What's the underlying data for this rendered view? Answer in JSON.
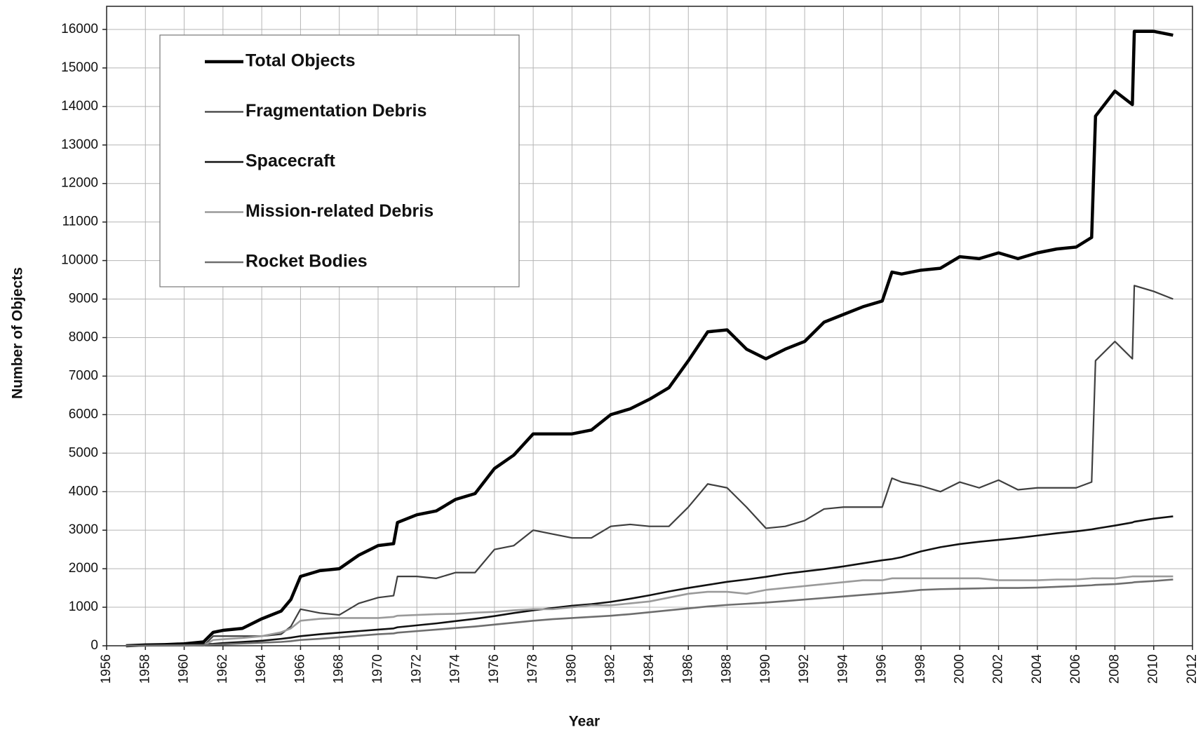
{
  "chart_data": {
    "type": "line",
    "xlabel": "Year",
    "ylabel": "Number of Objects",
    "x": [
      1957,
      1958,
      1959,
      1960,
      1961,
      1961.5,
      1962,
      1963,
      1964,
      1965,
      1965.5,
      1966,
      1967,
      1968,
      1969,
      1970,
      1970.8,
      1971,
      1972,
      1973,
      1974,
      1975,
      1976,
      1977,
      1978,
      1979,
      1980,
      1981,
      1982,
      1983,
      1984,
      1985,
      1986,
      1987,
      1988,
      1989,
      1990,
      1991,
      1992,
      1993,
      1994,
      1995,
      1996,
      1996.5,
      1997,
      1998,
      1999,
      2000,
      2001,
      2002,
      2003,
      2004,
      2005,
      2006,
      2006.8,
      2007,
      2008,
      2008.9,
      2009,
      2010,
      2011
    ],
    "series": [
      {
        "name": "Total Objects",
        "color": "#000000",
        "linewidth": 4.5,
        "values": [
          0,
          20,
          30,
          50,
          100,
          350,
          400,
          450,
          700,
          900,
          1200,
          1800,
          1950,
          2000,
          2350,
          2600,
          2650,
          3200,
          3400,
          3500,
          3800,
          3950,
          4600,
          4950,
          5500,
          5500,
          5500,
          5600,
          6000,
          6150,
          6400,
          6700,
          7400,
          8150,
          8200,
          7700,
          7450,
          7700,
          7900,
          8400,
          8600,
          8800,
          8950,
          9700,
          9650,
          9750,
          9800,
          10100,
          10050,
          10200,
          10050,
          10200,
          10300,
          10350,
          10600,
          13750,
          14400,
          14050,
          15950,
          15950,
          15850
        ]
      },
      {
        "name": "Fragmentation Debris",
        "color": "#3f3f3f",
        "linewidth": 2.2,
        "values": [
          0,
          0,
          0,
          0,
          0,
          250,
          250,
          250,
          250,
          300,
          500,
          950,
          850,
          800,
          1100,
          1250,
          1300,
          1800,
          1800,
          1750,
          1900,
          1900,
          2500,
          2600,
          3000,
          2900,
          2800,
          2800,
          3100,
          3150,
          3100,
          3100,
          3600,
          4200,
          4100,
          3600,
          3050,
          3100,
          3250,
          3550,
          3600,
          3600,
          3600,
          4350,
          4250,
          4150,
          4000,
          4250,
          4100,
          4300,
          4050,
          4100,
          4100,
          4100,
          4250,
          7400,
          7900,
          7450,
          9350,
          9200,
          9000
        ]
      },
      {
        "name": "Spacecraft",
        "color": "#111111",
        "linewidth": 2.6,
        "values": [
          0,
          5,
          10,
          20,
          40,
          50,
          70,
          100,
          130,
          180,
          210,
          250,
          300,
          340,
          380,
          420,
          450,
          480,
          530,
          580,
          640,
          700,
          770,
          850,
          920,
          980,
          1040,
          1080,
          1140,
          1220,
          1310,
          1410,
          1500,
          1580,
          1660,
          1720,
          1790,
          1870,
          1930,
          1990,
          2060,
          2140,
          2220,
          2250,
          2300,
          2450,
          2560,
          2640,
          2700,
          2750,
          2800,
          2860,
          2920,
          2970,
          3020,
          3040,
          3120,
          3200,
          3220,
          3300,
          3360
        ]
      },
      {
        "name": "Mission-related Debris",
        "color": "#9a9a9a",
        "linewidth": 2.6,
        "values": [
          0,
          0,
          0,
          0,
          10,
          150,
          170,
          200,
          250,
          350,
          450,
          650,
          700,
          720,
          720,
          720,
          750,
          780,
          800,
          820,
          830,
          860,
          880,
          920,
          950,
          950,
          1000,
          1050,
          1050,
          1100,
          1150,
          1250,
          1350,
          1400,
          1400,
          1350,
          1450,
          1500,
          1550,
          1600,
          1650,
          1700,
          1700,
          1750,
          1750,
          1750,
          1750,
          1750,
          1750,
          1700,
          1700,
          1700,
          1720,
          1720,
          1750,
          1750,
          1750,
          1800,
          1800,
          1800,
          1800
        ]
      },
      {
        "name": "Rocket Bodies",
        "color": "#6e6e6e",
        "linewidth": 2.6,
        "values": [
          0,
          5,
          10,
          15,
          20,
          30,
          40,
          60,
          80,
          100,
          120,
          150,
          180,
          220,
          260,
          300,
          320,
          340,
          380,
          420,
          460,
          500,
          550,
          600,
          650,
          690,
          720,
          750,
          780,
          820,
          870,
          920,
          970,
          1020,
          1060,
          1090,
          1120,
          1160,
          1200,
          1240,
          1280,
          1320,
          1360,
          1380,
          1400,
          1450,
          1470,
          1480,
          1490,
          1500,
          1500,
          1510,
          1530,
          1550,
          1570,
          1580,
          1600,
          1640,
          1650,
          1680,
          1720
        ]
      }
    ],
    "xlim": [
      1956,
      2012
    ],
    "xticks": [
      1956,
      1958,
      1960,
      1962,
      1964,
      1966,
      1968,
      1970,
      1972,
      1974,
      1976,
      1978,
      1980,
      1982,
      1984,
      1986,
      1988,
      1990,
      1992,
      1994,
      1996,
      1998,
      2000,
      2002,
      2004,
      2006,
      2008,
      2010,
      2012
    ],
    "ylim": [
      0,
      16600
    ],
    "yticks": [
      0,
      1000,
      2000,
      3000,
      4000,
      5000,
      6000,
      7000,
      8000,
      9000,
      10000,
      11000,
      12000,
      13000,
      14000,
      15000,
      16000
    ],
    "grid": true,
    "legend": "upper left"
  }
}
